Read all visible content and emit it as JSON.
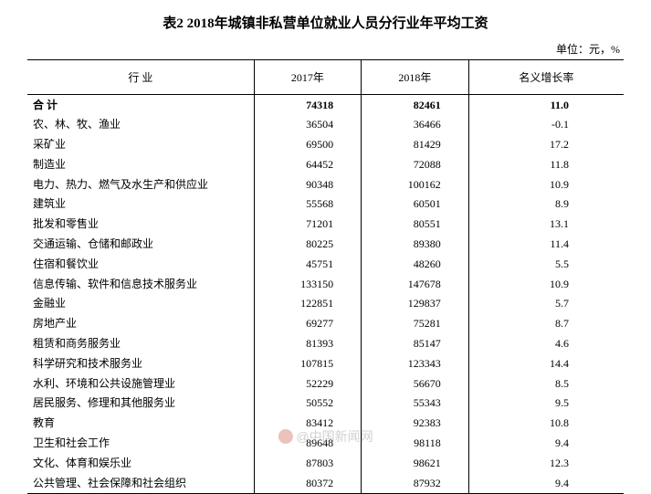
{
  "title": "表2 2018年城镇非私营单位就业人员分行业年平均工资",
  "unit": "单位：元，%",
  "headers": {
    "industry": "行 业",
    "y2017": "2017年",
    "y2018": "2018年",
    "growth": "名义增长率"
  },
  "total": {
    "label": "合 计",
    "y2017": "74318",
    "y2018": "82461",
    "growth": "11.0"
  },
  "rows": [
    {
      "label": "农、林、牧、渔业",
      "y2017": "36504",
      "y2018": "36466",
      "growth": "-0.1"
    },
    {
      "label": "采矿业",
      "y2017": "69500",
      "y2018": "81429",
      "growth": "17.2"
    },
    {
      "label": "制造业",
      "y2017": "64452",
      "y2018": "72088",
      "growth": "11.8"
    },
    {
      "label": "电力、热力、燃气及水生产和供应业",
      "y2017": "90348",
      "y2018": "100162",
      "growth": "10.9"
    },
    {
      "label": "建筑业",
      "y2017": "55568",
      "y2018": "60501",
      "growth": "8.9"
    },
    {
      "label": "批发和零售业",
      "y2017": "71201",
      "y2018": "80551",
      "growth": "13.1"
    },
    {
      "label": "交通运输、仓储和邮政业",
      "y2017": "80225",
      "y2018": "89380",
      "growth": "11.4"
    },
    {
      "label": "住宿和餐饮业",
      "y2017": "45751",
      "y2018": "48260",
      "growth": "5.5"
    },
    {
      "label": "信息传输、软件和信息技术服务业",
      "y2017": "133150",
      "y2018": "147678",
      "growth": "10.9"
    },
    {
      "label": "金融业",
      "y2017": "122851",
      "y2018": "129837",
      "growth": "5.7"
    },
    {
      "label": "房地产业",
      "y2017": "69277",
      "y2018": "75281",
      "growth": "8.7"
    },
    {
      "label": "租赁和商务服务业",
      "y2017": "81393",
      "y2018": "85147",
      "growth": "4.6"
    },
    {
      "label": "科学研究和技术服务业",
      "y2017": "107815",
      "y2018": "123343",
      "growth": "14.4"
    },
    {
      "label": "水利、环境和公共设施管理业",
      "y2017": "52229",
      "y2018": "56670",
      "growth": "8.5"
    },
    {
      "label": "居民服务、修理和其他服务业",
      "y2017": "50552",
      "y2018": "55343",
      "growth": "9.5"
    },
    {
      "label": "教育",
      "y2017": "83412",
      "y2018": "92383",
      "growth": "10.8"
    },
    {
      "label": "卫生和社会工作",
      "y2017": "89648",
      "y2018": "98118",
      "growth": "9.4"
    },
    {
      "label": "文化、体育和娱乐业",
      "y2017": "87803",
      "y2018": "98621",
      "growth": "12.3"
    },
    {
      "label": "公共管理、社会保障和社会组织",
      "y2017": "80372",
      "y2018": "87932",
      "growth": "9.4"
    }
  ],
  "watermark": "@中国新闻网",
  "style": {
    "background_color": "#ffffff",
    "text_color": "#000000",
    "border_color": "#000000",
    "font_family": "SimSun",
    "title_fontsize": 15,
    "body_fontsize": 12,
    "col_widths_pct": [
      38,
      18,
      18,
      26
    ]
  }
}
